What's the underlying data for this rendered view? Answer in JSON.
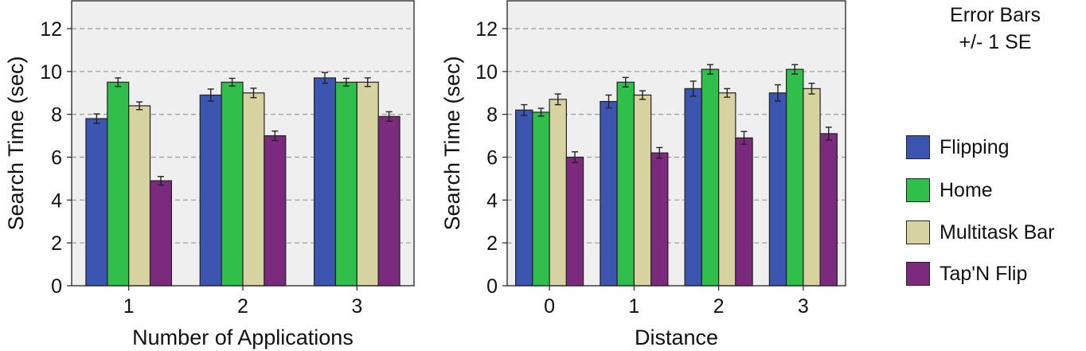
{
  "chart_data": [
    {
      "type": "bar",
      "title": "",
      "xlabel": "Number of Applications",
      "ylabel": "Search Time (sec)",
      "ylim": [
        0,
        13.3
      ],
      "yticks": [
        0,
        2,
        4,
        6,
        8,
        10,
        12
      ],
      "grid": "horizontal dashed",
      "categories": [
        "1",
        "2",
        "3"
      ],
      "series": [
        {
          "name": "Flipping",
          "values": [
            7.8,
            8.9,
            9.7
          ],
          "errors": [
            0.22,
            0.28,
            0.25
          ]
        },
        {
          "name": "Home",
          "values": [
            9.5,
            9.5,
            9.5
          ],
          "errors": [
            0.2,
            0.18,
            0.18
          ]
        },
        {
          "name": "Multitask Bar",
          "values": [
            8.4,
            9.0,
            9.5
          ],
          "errors": [
            0.18,
            0.22,
            0.2
          ]
        },
        {
          "name": "Tap'N Flip",
          "values": [
            4.9,
            7.0,
            7.9
          ],
          "errors": [
            0.2,
            0.22,
            0.22
          ]
        }
      ]
    },
    {
      "type": "bar",
      "title": "",
      "xlabel": "Distance",
      "ylabel": "Search Time (sec)",
      "ylim": [
        0,
        13.3
      ],
      "yticks": [
        0,
        2,
        4,
        6,
        8,
        10,
        12
      ],
      "grid": "horizontal dashed",
      "categories": [
        "0",
        "1",
        "2",
        "3"
      ],
      "series": [
        {
          "name": "Flipping",
          "values": [
            8.2,
            8.6,
            9.2,
            9.0
          ],
          "errors": [
            0.25,
            0.3,
            0.35,
            0.38
          ]
        },
        {
          "name": "Home",
          "values": [
            8.1,
            9.5,
            10.1,
            10.1
          ],
          "errors": [
            0.18,
            0.22,
            0.22,
            0.22
          ]
        },
        {
          "name": "Multitask Bar",
          "values": [
            8.7,
            8.9,
            9.0,
            9.2
          ],
          "errors": [
            0.25,
            0.2,
            0.2,
            0.25
          ]
        },
        {
          "name": "Tap'N Flip",
          "values": [
            6.0,
            6.2,
            6.9,
            7.1
          ],
          "errors": [
            0.25,
            0.25,
            0.3,
            0.3
          ]
        }
      ]
    }
  ],
  "legend": {
    "note_line1": "Error Bars",
    "note_line2": "+/- 1 SE",
    "items": [
      {
        "label": "Flipping",
        "color": "#3b55b0"
      },
      {
        "label": "Home",
        "color": "#2fbf4a"
      },
      {
        "label": "Multitask Bar",
        "color": "#d6d3a0"
      },
      {
        "label": "Tap'N Flip",
        "color": "#7b2a7e"
      }
    ]
  },
  "colors": {
    "plot_background": "#efefef",
    "gridline": "#9a9a9a"
  }
}
